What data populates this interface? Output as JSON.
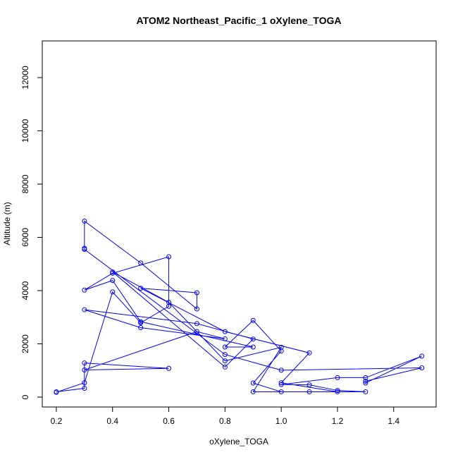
{
  "chart_data": {
    "type": "line",
    "title": "ATOM2 Northeast_Pacific_1 oXylene_TOGA",
    "x_label": "oXylene_TOGA",
    "y_label": "Altitude (m)",
    "x": [
      0.2,
      0.3,
      0.4,
      0.5,
      0.6,
      0.6,
      0.4,
      0.3,
      0.4,
      0.5,
      0.9,
      0.8,
      0.9,
      1.0,
      0.9,
      1.0,
      1.1,
      1.3,
      1.2,
      1.1,
      1.0,
      1.2,
      1.3,
      1.5,
      1.3,
      1.3,
      1.5,
      1.0,
      0.8,
      0.3,
      0.3,
      0.3,
      0.5,
      0.7,
      0.7,
      0.5,
      0.8,
      1.1,
      1.0,
      1.2,
      0.9,
      1.0,
      0.8,
      0.6,
      0.4,
      0.8,
      0.9,
      0.7,
      0.3,
      0.5,
      0.8,
      0.7,
      0.3,
      0.6,
      0.3,
      0.3,
      0.2
    ],
    "series": [
      {
        "name": "oXylene_TOGA",
        "color": "#0000ff",
        "values": [
          180,
          540,
          3950,
          2790,
          3410,
          5270,
          4650,
          4020,
          4380,
          2830,
          1880,
          1880,
          2880,
          1730,
          530,
          200,
          200,
          200,
          250,
          460,
          470,
          730,
          730,
          1540,
          530,
          600,
          1100,
          1010,
          1600,
          5550,
          5590,
          6610,
          5040,
          3310,
          3920,
          4090,
          2460,
          1660,
          540,
          200,
          200,
          1870,
          1360,
          3560,
          4700,
          1130,
          2180,
          2760,
          3280,
          2610,
          2190,
          2460,
          1020,
          1080,
          1280,
          330,
          200
        ]
      }
    ],
    "xlim": [
      0.15,
      1.551
    ],
    "ylim": [
      -371,
      13377
    ],
    "xticks": [
      0.2,
      0.4,
      0.6,
      0.8,
      {
        "value": 1.0,
        "label": "1.0"
      },
      1.2,
      1.4
    ],
    "yticks": [
      0,
      2000,
      4000,
      6000,
      8000,
      10000,
      12000
    ]
  }
}
